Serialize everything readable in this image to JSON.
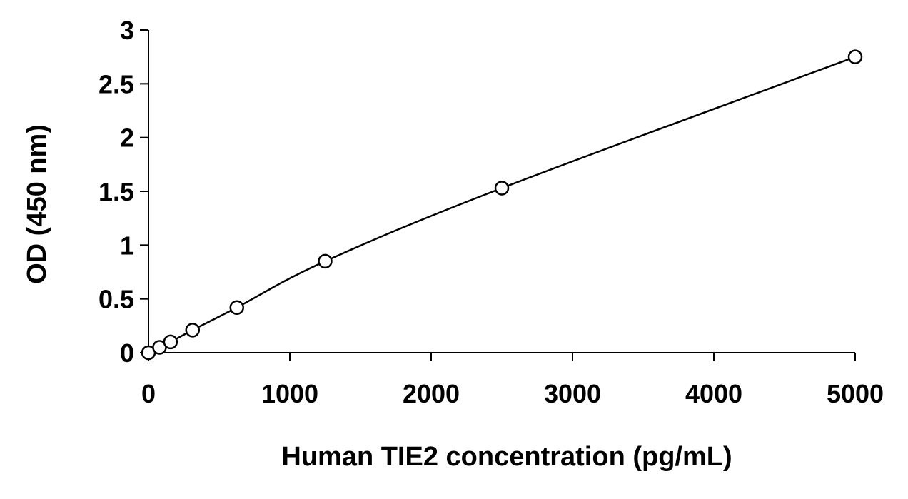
{
  "chart_data": {
    "type": "scatter",
    "title": "",
    "xlabel": "Human TIE2 concentration (pg/mL)",
    "ylabel": "OD (450 nm)",
    "xlim": [
      0,
      5000
    ],
    "ylim": [
      0,
      3
    ],
    "x_ticks": [
      0,
      1000,
      2000,
      3000,
      4000,
      5000
    ],
    "y_ticks": [
      0,
      0.5,
      1,
      1.5,
      2,
      2.5,
      3
    ],
    "x_tick_labels": [
      "0",
      "1000",
      "2000",
      "3000",
      "4000",
      "5000"
    ],
    "y_tick_labels": [
      "0",
      "0.5",
      "1",
      "1.5",
      "2",
      "2.5",
      "3"
    ],
    "grid": false,
    "legend": "none",
    "series": [
      {
        "points": [
          {
            "x": 0,
            "y": 0.0
          },
          {
            "x": 78,
            "y": 0.05
          },
          {
            "x": 156,
            "y": 0.1
          },
          {
            "x": 312,
            "y": 0.21
          },
          {
            "x": 625,
            "y": 0.42
          },
          {
            "x": 1250,
            "y": 0.85
          },
          {
            "x": 2500,
            "y": 1.53
          },
          {
            "x": 5000,
            "y": 2.75
          }
        ],
        "marker": "open-circle",
        "fit_line": "smooth-curve"
      }
    ],
    "colors": {
      "line": "#000000",
      "marker_stroke": "#000000",
      "marker_fill": "#ffffff",
      "axis": "#000000"
    }
  }
}
